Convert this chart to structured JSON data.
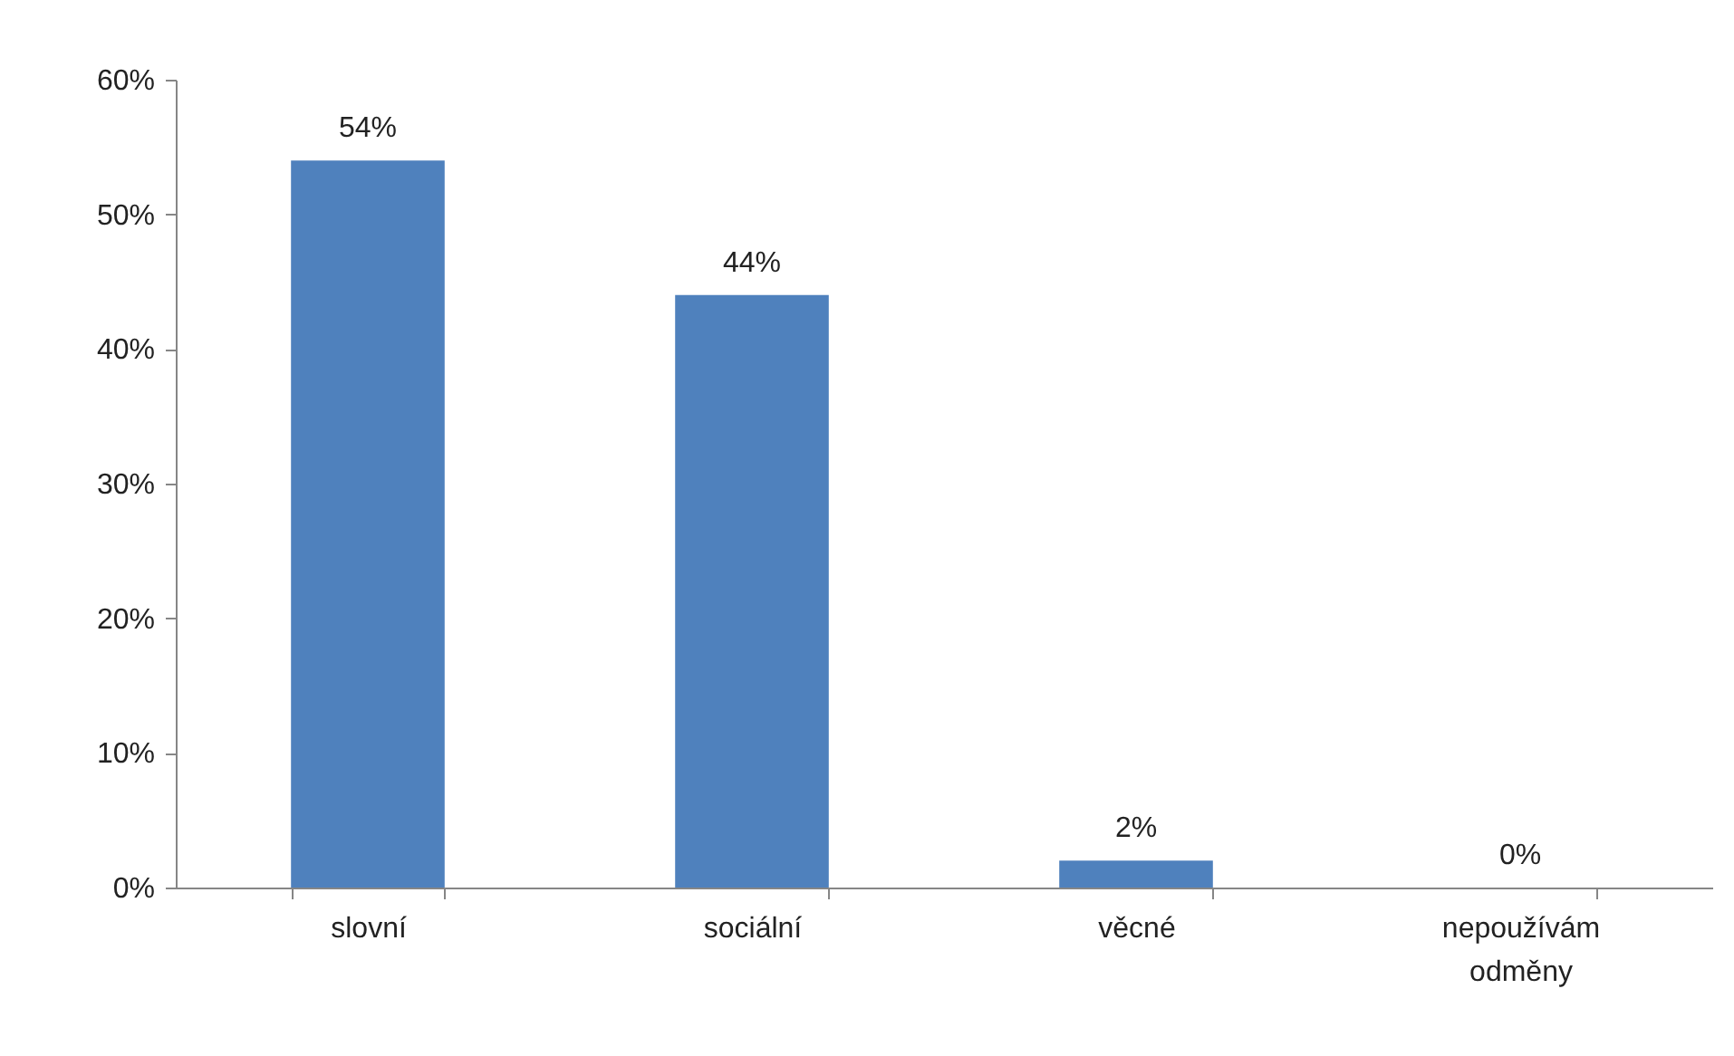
{
  "chart_data": {
    "type": "bar",
    "categories": [
      "slovní",
      "sociální",
      "věcné",
      "nepoužívám odměny"
    ],
    "values": [
      54,
      44,
      2,
      0
    ],
    "color": "#4f81bd",
    "value_labels": [
      "54%",
      "44%",
      "2%",
      "0%"
    ],
    "ylim": [
      0,
      60
    ],
    "yticks": [
      {
        "value": 0,
        "label": "0%"
      },
      {
        "value": 10,
        "label": "10%"
      },
      {
        "value": 20,
        "label": "20%"
      },
      {
        "value": 30,
        "label": "30%"
      },
      {
        "value": 40,
        "label": "40%"
      },
      {
        "value": 50,
        "label": "50%"
      },
      {
        "value": 60,
        "label": "60%"
      }
    ],
    "grid": false
  }
}
